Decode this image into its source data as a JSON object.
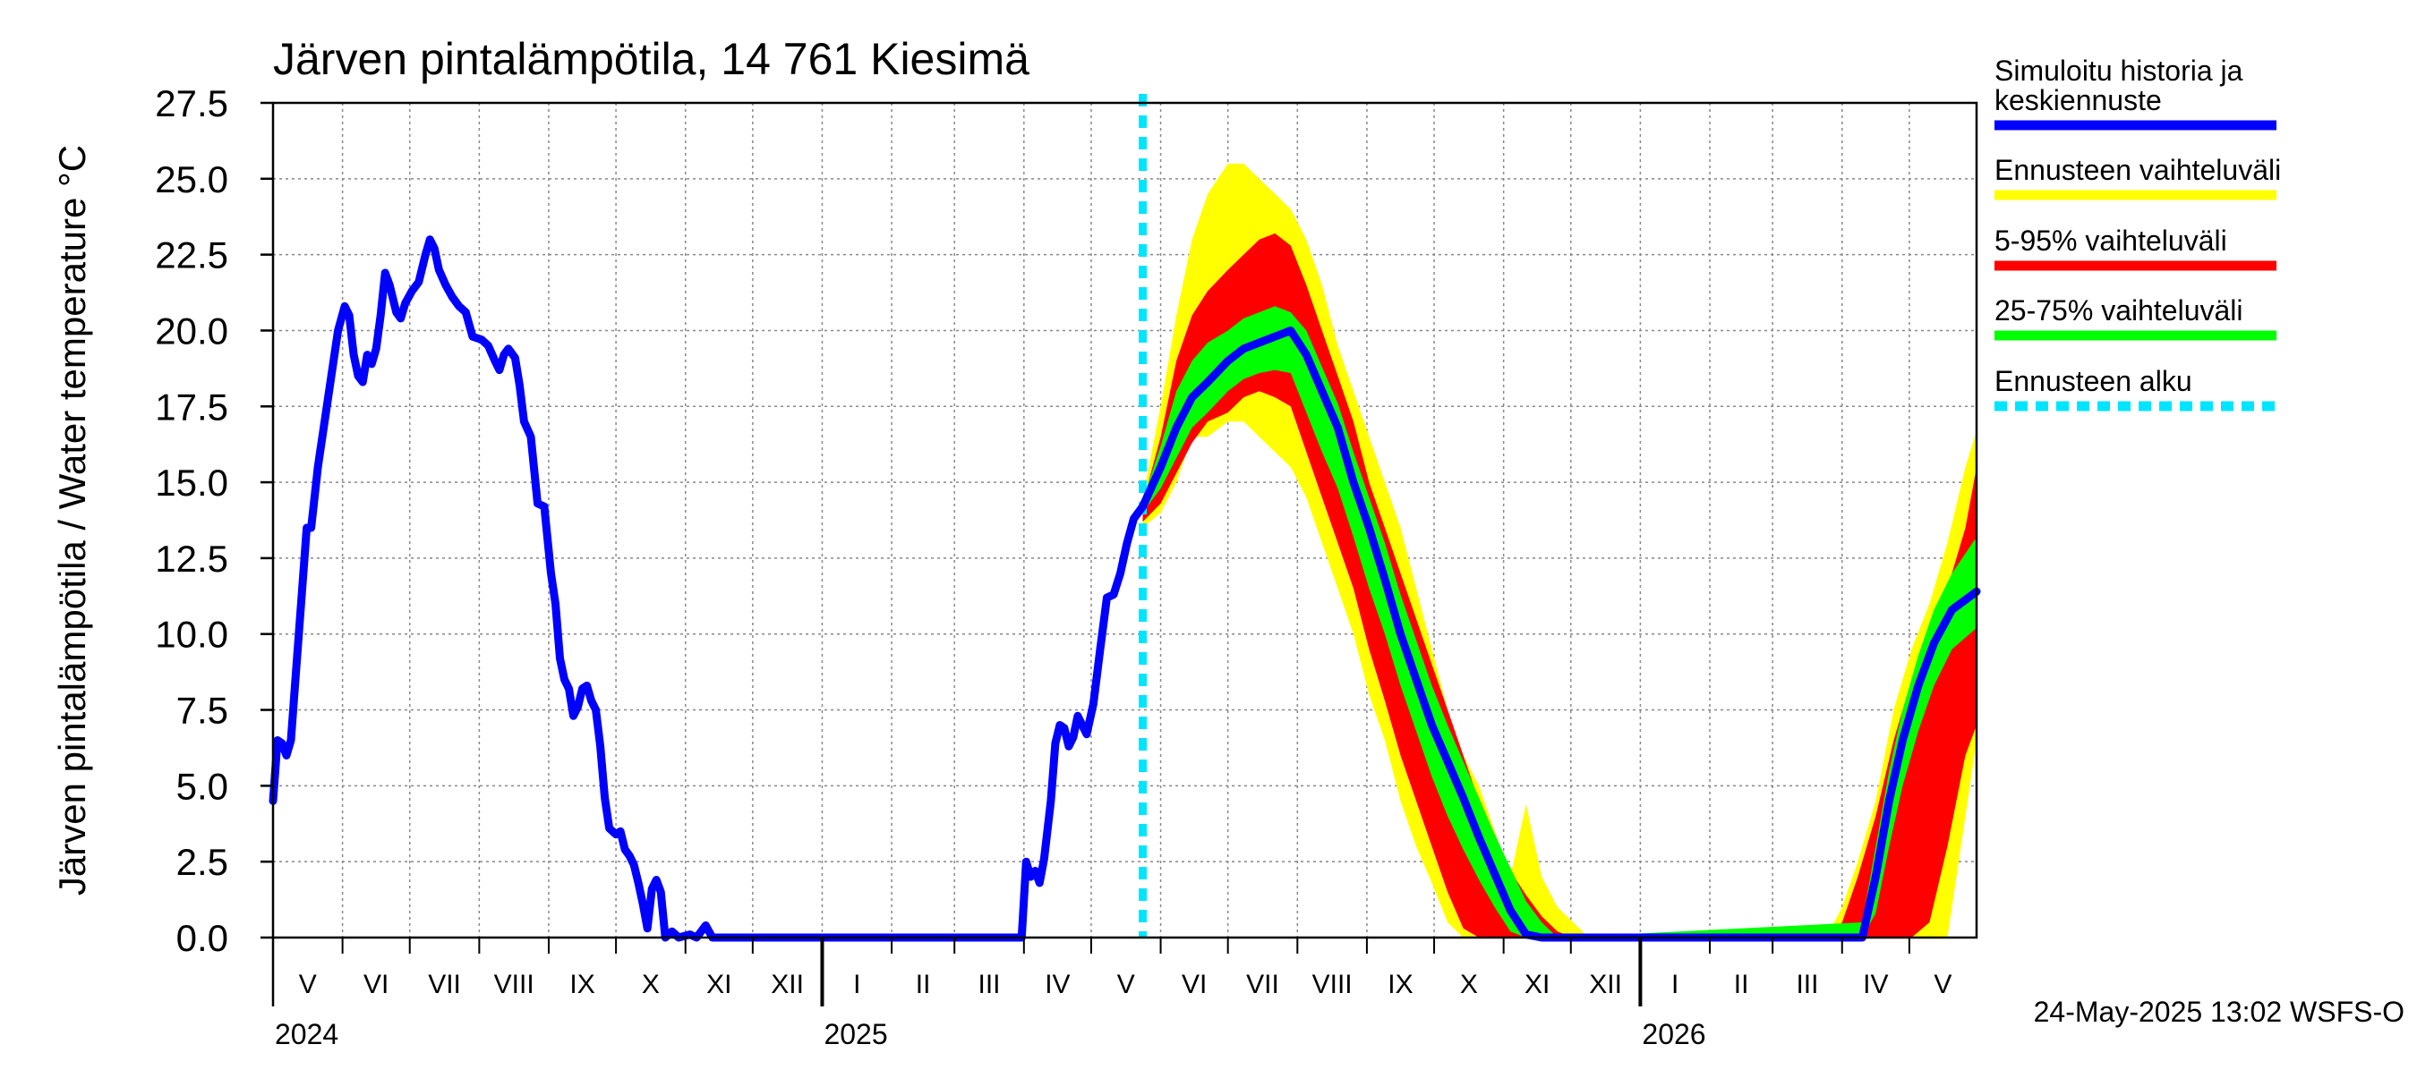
{
  "chart_data": {
    "type": "area",
    "title": "Järven pintalämpötila, 14 761 Kiesimä",
    "ylabel": "Järven pintalämpötila / Water temperature °C",
    "xlabel": "",
    "ylim": [
      0,
      27.5
    ],
    "yticks": [
      "0.0",
      "2.5",
      "5.0",
      "7.5",
      "10.0",
      "12.5",
      "15.0",
      "17.5",
      "20.0",
      "22.5",
      "25.0",
      "27.5"
    ],
    "grid": true,
    "legend_position": "right",
    "x_start": "2024-05-01",
    "x_end": "2026-05-31",
    "months": [
      {
        "label": "V",
        "start": "2024-05-01"
      },
      {
        "label": "VI",
        "start": "2024-06-01"
      },
      {
        "label": "VII",
        "start": "2024-07-01"
      },
      {
        "label": "VIII",
        "start": "2024-08-01"
      },
      {
        "label": "IX",
        "start": "2024-09-01"
      },
      {
        "label": "X",
        "start": "2024-10-01"
      },
      {
        "label": "XI",
        "start": "2024-11-01"
      },
      {
        "label": "XII",
        "start": "2024-12-01"
      },
      {
        "label": "I",
        "start": "2025-01-01"
      },
      {
        "label": "II",
        "start": "2025-02-01"
      },
      {
        "label": "III",
        "start": "2025-03-01"
      },
      {
        "label": "IV",
        "start": "2025-04-01"
      },
      {
        "label": "V",
        "start": "2025-05-01"
      },
      {
        "label": "VI",
        "start": "2025-06-01"
      },
      {
        "label": "VII",
        "start": "2025-07-01"
      },
      {
        "label": "VIII",
        "start": "2025-08-01"
      },
      {
        "label": "IX",
        "start": "2025-09-01"
      },
      {
        "label": "X",
        "start": "2025-10-01"
      },
      {
        "label": "XI",
        "start": "2025-11-01"
      },
      {
        "label": "XII",
        "start": "2025-12-01"
      },
      {
        "label": "I",
        "start": "2026-01-01"
      },
      {
        "label": "II",
        "start": "2026-02-01"
      },
      {
        "label": "III",
        "start": "2026-03-01"
      },
      {
        "label": "IV",
        "start": "2026-04-01"
      },
      {
        "label": "V",
        "start": "2026-05-01"
      }
    ],
    "years": [
      {
        "label": "2024",
        "date": "2024-05-01"
      },
      {
        "label": "2025",
        "date": "2025-01-01"
      },
      {
        "label": "2026",
        "date": "2026-01-01"
      }
    ],
    "forecast_start": "2025-05-24",
    "history": {
      "name": "Simuloitu historia ja keskiennuste",
      "color": "#0000ff",
      "points": [
        [
          "2024-05-01",
          4.5
        ],
        [
          "2024-05-03",
          6.5
        ],
        [
          "2024-05-05",
          6.4
        ],
        [
          "2024-05-07",
          6.0
        ],
        [
          "2024-05-09",
          6.5
        ],
        [
          "2024-05-11",
          8.5
        ],
        [
          "2024-05-14",
          11.5
        ],
        [
          "2024-05-16",
          13.5
        ],
        [
          "2024-05-18",
          13.5
        ],
        [
          "2024-05-21",
          15.5
        ],
        [
          "2024-05-24",
          17.0
        ],
        [
          "2024-05-27",
          18.5
        ],
        [
          "2024-05-30",
          20.0
        ],
        [
          "2024-06-02",
          20.8
        ],
        [
          "2024-06-04",
          20.5
        ],
        [
          "2024-06-06",
          19.2
        ],
        [
          "2024-06-08",
          18.5
        ],
        [
          "2024-06-10",
          18.3
        ],
        [
          "2024-06-12",
          19.2
        ],
        [
          "2024-06-14",
          18.9
        ],
        [
          "2024-06-16",
          19.4
        ],
        [
          "2024-06-18",
          20.5
        ],
        [
          "2024-06-20",
          21.9
        ],
        [
          "2024-06-22",
          21.5
        ],
        [
          "2024-06-25",
          20.6
        ],
        [
          "2024-06-27",
          20.4
        ],
        [
          "2024-06-29",
          20.9
        ],
        [
          "2024-07-02",
          21.3
        ],
        [
          "2024-07-05",
          21.6
        ],
        [
          "2024-07-08",
          22.5
        ],
        [
          "2024-07-10",
          23.0
        ],
        [
          "2024-07-12",
          22.7
        ],
        [
          "2024-07-14",
          22.0
        ],
        [
          "2024-07-17",
          21.5
        ],
        [
          "2024-07-20",
          21.1
        ],
        [
          "2024-07-23",
          20.8
        ],
        [
          "2024-07-26",
          20.6
        ],
        [
          "2024-07-29",
          19.8
        ],
        [
          "2024-08-02",
          19.7
        ],
        [
          "2024-08-05",
          19.5
        ],
        [
          "2024-08-08",
          19.0
        ],
        [
          "2024-08-10",
          18.7
        ],
        [
          "2024-08-12",
          19.2
        ],
        [
          "2024-08-14",
          19.4
        ],
        [
          "2024-08-17",
          19.1
        ],
        [
          "2024-08-19",
          18.2
        ],
        [
          "2024-08-21",
          17.0
        ],
        [
          "2024-08-24",
          16.5
        ],
        [
          "2024-08-27",
          14.3
        ],
        [
          "2024-08-30",
          14.2
        ],
        [
          "2024-09-02",
          12.0
        ],
        [
          "2024-09-04",
          11.0
        ],
        [
          "2024-09-06",
          9.2
        ],
        [
          "2024-09-08",
          8.5
        ],
        [
          "2024-09-10",
          8.2
        ],
        [
          "2024-09-12",
          7.3
        ],
        [
          "2024-09-14",
          7.6
        ],
        [
          "2024-09-16",
          8.2
        ],
        [
          "2024-09-18",
          8.3
        ],
        [
          "2024-09-20",
          7.8
        ],
        [
          "2024-09-22",
          7.5
        ],
        [
          "2024-09-24",
          6.3
        ],
        [
          "2024-09-26",
          4.6
        ],
        [
          "2024-09-28",
          3.6
        ],
        [
          "2024-10-01",
          3.4
        ],
        [
          "2024-10-03",
          3.5
        ],
        [
          "2024-10-05",
          2.9
        ],
        [
          "2024-10-07",
          2.7
        ],
        [
          "2024-10-09",
          2.4
        ],
        [
          "2024-10-11",
          1.8
        ],
        [
          "2024-10-13",
          1.1
        ],
        [
          "2024-10-15",
          0.3
        ],
        [
          "2024-10-17",
          1.6
        ],
        [
          "2024-10-19",
          1.9
        ],
        [
          "2024-10-21",
          1.5
        ],
        [
          "2024-10-23",
          0.0
        ],
        [
          "2024-10-26",
          0.2
        ],
        [
          "2024-10-29",
          0.0
        ],
        [
          "2024-11-03",
          0.1
        ],
        [
          "2024-11-06",
          0.0
        ],
        [
          "2024-11-10",
          0.4
        ],
        [
          "2024-11-13",
          0.0
        ],
        [
          "2024-11-20",
          0.0
        ],
        [
          "2024-12-31",
          0.0
        ],
        [
          "2025-03-31",
          0.0
        ],
        [
          "2025-04-02",
          2.5
        ],
        [
          "2025-04-04",
          2.0
        ],
        [
          "2025-04-06",
          2.2
        ],
        [
          "2025-04-08",
          1.8
        ],
        [
          "2025-04-10",
          2.6
        ],
        [
          "2025-04-13",
          4.5
        ],
        [
          "2025-04-15",
          6.4
        ],
        [
          "2025-04-17",
          7.0
        ],
        [
          "2025-04-19",
          6.9
        ],
        [
          "2025-04-21",
          6.3
        ],
        [
          "2025-04-23",
          6.6
        ],
        [
          "2025-04-25",
          7.3
        ],
        [
          "2025-04-27",
          7.0
        ],
        [
          "2025-04-29",
          6.7
        ],
        [
          "2025-05-02",
          7.7
        ],
        [
          "2025-05-05",
          9.5
        ],
        [
          "2025-05-08",
          11.2
        ],
        [
          "2025-05-11",
          11.3
        ],
        [
          "2025-05-14",
          12.0
        ],
        [
          "2025-05-17",
          13.0
        ],
        [
          "2025-05-20",
          13.8
        ],
        [
          "2025-05-24",
          14.2
        ]
      ]
    },
    "forecast_median": {
      "name": "Simuloitu historia ja keskiennuste",
      "color": "#0000ff",
      "points": [
        [
          "2025-05-24",
          14.2
        ],
        [
          "2025-06-01",
          15.5
        ],
        [
          "2025-06-08",
          16.8
        ],
        [
          "2025-06-15",
          17.8
        ],
        [
          "2025-06-22",
          18.3
        ],
        [
          "2025-07-01",
          19.0
        ],
        [
          "2025-07-08",
          19.4
        ],
        [
          "2025-07-15",
          19.6
        ],
        [
          "2025-07-22",
          19.8
        ],
        [
          "2025-07-29",
          20.0
        ],
        [
          "2025-08-05",
          19.2
        ],
        [
          "2025-08-12",
          18.0
        ],
        [
          "2025-08-19",
          16.8
        ],
        [
          "2025-08-26",
          15.0
        ],
        [
          "2025-09-02",
          13.5
        ],
        [
          "2025-09-09",
          11.8
        ],
        [
          "2025-09-16",
          10.0
        ],
        [
          "2025-09-23",
          8.5
        ],
        [
          "2025-09-30",
          7.0
        ],
        [
          "2025-10-07",
          5.8
        ],
        [
          "2025-10-14",
          4.6
        ],
        [
          "2025-10-21",
          3.3
        ],
        [
          "2025-10-28",
          2.1
        ],
        [
          "2025-11-04",
          0.9
        ],
        [
          "2025-11-11",
          0.1
        ],
        [
          "2025-11-18",
          0.0
        ],
        [
          "2026-04-10",
          0.0
        ],
        [
          "2026-04-16",
          2.0
        ],
        [
          "2026-04-22",
          4.5
        ],
        [
          "2026-04-28",
          6.5
        ],
        [
          "2026-05-05",
          8.3
        ],
        [
          "2026-05-12",
          9.7
        ],
        [
          "2026-05-20",
          10.8
        ],
        [
          "2026-05-31",
          11.4
        ]
      ]
    },
    "bands": [
      {
        "name": "Ennusteen vaihteluväli",
        "color": "#ffff00",
        "x": [
          "2025-05-24",
          "2025-06-01",
          "2025-06-08",
          "2025-06-15",
          "2025-06-22",
          "2025-07-01",
          "2025-07-08",
          "2025-07-15",
          "2025-07-22",
          "2025-07-29",
          "2025-08-05",
          "2025-08-12",
          "2025-08-19",
          "2025-08-26",
          "2025-09-02",
          "2025-09-09",
          "2025-09-16",
          "2025-09-23",
          "2025-09-30",
          "2025-10-07",
          "2025-10-14",
          "2025-10-21",
          "2025-10-28",
          "2025-11-04",
          "2025-11-11",
          "2025-11-18",
          "2025-11-25",
          "2025-12-02",
          "2025-12-09",
          "2026-03-25",
          "2026-04-01",
          "2026-04-08",
          "2026-04-16",
          "2026-04-24",
          "2026-05-02",
          "2026-05-10",
          "2026-05-18",
          "2026-05-26",
          "2026-05-31"
        ],
        "low": [
          13.5,
          14.0,
          15.0,
          16.5,
          16.5,
          17.0,
          17.0,
          16.5,
          16.0,
          15.5,
          14.5,
          13.0,
          11.5,
          10.0,
          8.0,
          6.5,
          4.5,
          3.0,
          1.8,
          0.5,
          0.0,
          0.0,
          0.0,
          0.0,
          0.0,
          0.0,
          0.0,
          0.0,
          0.0,
          0.0,
          0.0,
          0.0,
          0.0,
          0.0,
          0.0,
          0.0,
          0.0,
          4.0,
          6.5
        ],
        "high": [
          14.5,
          17.5,
          20.5,
          23.0,
          24.5,
          25.5,
          25.5,
          25.0,
          24.5,
          24.0,
          23.0,
          21.5,
          19.5,
          18.0,
          16.5,
          15.0,
          13.5,
          11.5,
          9.5,
          7.5,
          6.0,
          5.0,
          3.5,
          2.0,
          4.4,
          2.0,
          1.0,
          0.5,
          0.0,
          0.0,
          1.0,
          2.5,
          4.5,
          7.5,
          9.5,
          11.0,
          13.0,
          15.5,
          16.7
        ]
      },
      {
        "name": "5-95% vaihteluväli",
        "color": "#ff0000",
        "x": [
          "2025-05-24",
          "2025-06-01",
          "2025-06-08",
          "2025-06-15",
          "2025-06-22",
          "2025-07-01",
          "2025-07-08",
          "2025-07-15",
          "2025-07-22",
          "2025-07-29",
          "2025-08-05",
          "2025-08-12",
          "2025-08-19",
          "2025-08-26",
          "2025-09-02",
          "2025-09-09",
          "2025-09-16",
          "2025-09-23",
          "2025-09-30",
          "2025-10-07",
          "2025-10-14",
          "2025-10-21",
          "2025-10-28",
          "2025-11-04",
          "2025-11-11",
          "2025-11-18",
          "2025-11-25",
          "2025-12-02",
          "2026-03-25",
          "2026-04-01",
          "2026-04-08",
          "2026-04-16",
          "2026-04-24",
          "2026-05-02",
          "2026-05-10",
          "2026-05-18",
          "2026-05-26",
          "2026-05-31"
        ],
        "low": [
          13.7,
          14.3,
          15.3,
          16.3,
          17.0,
          17.3,
          17.8,
          18.0,
          17.8,
          17.5,
          16.0,
          14.5,
          13.0,
          11.5,
          9.5,
          7.8,
          6.0,
          4.5,
          3.0,
          1.5,
          0.3,
          0.0,
          0.0,
          0.0,
          0.0,
          0.0,
          0.0,
          0.0,
          0.0,
          0.0,
          0.0,
          0.0,
          0.0,
          0.0,
          0.5,
          3.0,
          6.0,
          7.0
        ],
        "high": [
          14.3,
          16.5,
          19.0,
          20.5,
          21.3,
          22.0,
          22.5,
          23.0,
          23.2,
          22.8,
          21.5,
          20.0,
          18.5,
          17.0,
          15.0,
          13.5,
          12.0,
          10.5,
          9.0,
          7.5,
          6.0,
          4.5,
          3.3,
          2.2,
          1.4,
          0.7,
          0.2,
          0.0,
          0.0,
          0.5,
          2.0,
          4.0,
          6.5,
          8.5,
          10.0,
          11.5,
          13.5,
          15.5
        ]
      },
      {
        "name": "25-75% vaihteluväli",
        "color": "#00ff00",
        "x": [
          "2025-05-24",
          "2025-06-01",
          "2025-06-08",
          "2025-06-15",
          "2025-06-22",
          "2025-07-01",
          "2025-07-08",
          "2025-07-15",
          "2025-07-22",
          "2025-07-29",
          "2025-08-05",
          "2025-08-12",
          "2025-08-19",
          "2025-08-26",
          "2025-09-02",
          "2025-09-09",
          "2025-09-16",
          "2025-09-23",
          "2025-09-30",
          "2025-10-07",
          "2025-10-14",
          "2025-10-21",
          "2025-10-28",
          "2025-11-04",
          "2025-11-11",
          "2025-11-18",
          "2025-11-25",
          "2026-04-10",
          "2026-04-16",
          "2026-04-22",
          "2026-04-28",
          "2026-05-05",
          "2026-05-12",
          "2026-05-20",
          "2026-05-31"
        ],
        "low": [
          14.0,
          14.8,
          15.8,
          16.8,
          17.3,
          18.0,
          18.4,
          18.6,
          18.7,
          18.6,
          17.3,
          16.0,
          14.8,
          13.2,
          11.5,
          10.0,
          8.3,
          6.8,
          5.3,
          4.0,
          2.9,
          1.9,
          1.0,
          0.2,
          0.0,
          0.0,
          0.0,
          0.0,
          0.8,
          3.0,
          5.0,
          6.8,
          8.3,
          9.5,
          10.2
        ],
        "high": [
          14.4,
          16.2,
          18.0,
          19.0,
          19.6,
          20.0,
          20.4,
          20.6,
          20.8,
          20.6,
          20.0,
          18.8,
          17.6,
          16.0,
          14.5,
          13.0,
          11.3,
          9.8,
          8.3,
          7.0,
          5.8,
          4.6,
          3.4,
          2.3,
          1.2,
          0.5,
          0.0,
          0.5,
          3.0,
          5.5,
          7.5,
          9.3,
          10.8,
          12.0,
          13.2
        ]
      }
    ],
    "legend": [
      {
        "label": "Simuloitu historia ja keskiennuste",
        "color": "#0000ff",
        "style": "solid"
      },
      {
        "label": "Ennusteen vaihteluväli",
        "color": "#ffff00",
        "style": "solid"
      },
      {
        "label": "5-95% vaihteluväli",
        "color": "#ff0000",
        "style": "solid"
      },
      {
        "label": "25-75% vaihteluväli",
        "color": "#00ff00",
        "style": "solid"
      },
      {
        "label": "Ennusteen alku",
        "color": "#00e5ff",
        "style": "dashed"
      }
    ],
    "footer": "24-May-2025 13:02 WSFS-O"
  }
}
